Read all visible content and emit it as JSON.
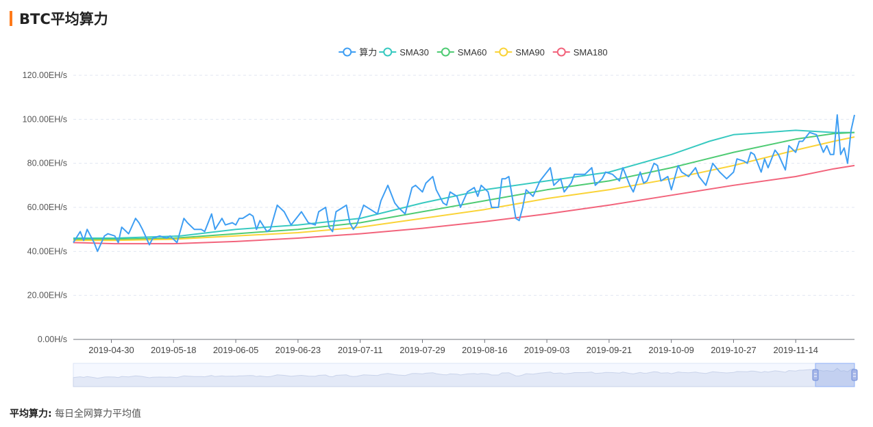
{
  "header": {
    "title": "BTC平均算力",
    "accent_color": "#ff7a1a"
  },
  "footnote": {
    "label": "平均算力:",
    "text": "每日全网算力平均值"
  },
  "chart_data": {
    "type": "line",
    "y_tick_labels": [
      "0.00H/s",
      "20.00EH/s",
      "40.00EH/s",
      "60.00EH/s",
      "80.00EH/s",
      "100.00EH/s",
      "120.00EH/s"
    ],
    "y_ticks": [
      0,
      20,
      40,
      60,
      80,
      100,
      120
    ],
    "ylim": [
      0,
      120
    ],
    "y_unit": "EH/s",
    "x_range": [
      "2019-04-19",
      "2019-12-01"
    ],
    "x_tick_labels": [
      "2019-04-30",
      "2019-05-18",
      "2019-06-05",
      "2019-06-23",
      "2019-07-11",
      "2019-07-29",
      "2019-08-16",
      "2019-09-03",
      "2019-09-21",
      "2019-10-09",
      "2019-10-27",
      "2019-11-14"
    ],
    "grid": "horizontal dashed",
    "legend_position": "top-center",
    "series": [
      {
        "name": "算力",
        "color": "#3e9ef3",
        "width": 2,
        "points": [
          [
            "2019-04-19",
            44
          ],
          [
            "2019-04-21",
            49
          ],
          [
            "2019-04-22",
            45
          ],
          [
            "2019-04-23",
            50
          ],
          [
            "2019-04-25",
            44
          ],
          [
            "2019-04-26",
            40
          ],
          [
            "2019-04-28",
            47
          ],
          [
            "2019-04-29",
            48
          ],
          [
            "2019-05-01",
            47
          ],
          [
            "2019-05-02",
            44
          ],
          [
            "2019-05-03",
            51
          ],
          [
            "2019-05-05",
            48
          ],
          [
            "2019-05-07",
            55
          ],
          [
            "2019-05-08",
            53
          ],
          [
            "2019-05-09",
            50
          ],
          [
            "2019-05-11",
            43
          ],
          [
            "2019-05-12",
            46
          ],
          [
            "2019-05-14",
            47
          ],
          [
            "2019-05-16",
            46
          ],
          [
            "2019-05-17",
            47
          ],
          [
            "2019-05-19",
            44
          ],
          [
            "2019-05-21",
            55
          ],
          [
            "2019-05-22",
            53
          ],
          [
            "2019-05-24",
            50
          ],
          [
            "2019-05-26",
            50
          ],
          [
            "2019-05-27",
            49
          ],
          [
            "2019-05-29",
            57
          ],
          [
            "2019-05-30",
            50
          ],
          [
            "2019-06-01",
            55
          ],
          [
            "2019-06-02",
            52
          ],
          [
            "2019-06-04",
            53
          ],
          [
            "2019-06-05",
            52
          ],
          [
            "2019-06-06",
            55
          ],
          [
            "2019-06-07",
            55
          ],
          [
            "2019-06-09",
            57
          ],
          [
            "2019-06-10",
            56
          ],
          [
            "2019-06-11",
            50
          ],
          [
            "2019-06-12",
            54
          ],
          [
            "2019-06-14",
            49
          ],
          [
            "2019-06-15",
            50
          ],
          [
            "2019-06-17",
            61
          ],
          [
            "2019-06-19",
            58
          ],
          [
            "2019-06-21",
            52
          ],
          [
            "2019-06-23",
            56
          ],
          [
            "2019-06-24",
            58
          ],
          [
            "2019-06-26",
            53
          ],
          [
            "2019-06-28",
            52
          ],
          [
            "2019-06-29",
            58
          ],
          [
            "2019-07-01",
            60
          ],
          [
            "2019-07-02",
            51
          ],
          [
            "2019-07-03",
            49
          ],
          [
            "2019-07-04",
            58
          ],
          [
            "2019-07-06",
            60
          ],
          [
            "2019-07-07",
            61
          ],
          [
            "2019-07-08",
            53
          ],
          [
            "2019-07-09",
            50
          ],
          [
            "2019-07-10",
            52
          ],
          [
            "2019-07-12",
            61
          ],
          [
            "2019-07-14",
            59
          ],
          [
            "2019-07-16",
            57
          ],
          [
            "2019-07-17",
            63
          ],
          [
            "2019-07-19",
            70
          ],
          [
            "2019-07-21",
            62
          ],
          [
            "2019-07-22",
            60
          ],
          [
            "2019-07-24",
            57
          ],
          [
            "2019-07-26",
            69
          ],
          [
            "2019-07-27",
            70
          ],
          [
            "2019-07-29",
            67
          ],
          [
            "2019-07-30",
            71
          ],
          [
            "2019-08-01",
            74
          ],
          [
            "2019-08-02",
            68
          ],
          [
            "2019-08-04",
            62
          ],
          [
            "2019-08-05",
            61
          ],
          [
            "2019-08-06",
            67
          ],
          [
            "2019-08-08",
            65
          ],
          [
            "2019-08-09",
            60
          ],
          [
            "2019-08-11",
            67
          ],
          [
            "2019-08-13",
            69
          ],
          [
            "2019-08-14",
            65
          ],
          [
            "2019-08-15",
            70
          ],
          [
            "2019-08-17",
            67
          ],
          [
            "2019-08-18",
            60
          ],
          [
            "2019-08-19",
            60
          ],
          [
            "2019-08-20",
            60
          ],
          [
            "2019-08-21",
            73
          ],
          [
            "2019-08-22",
            73
          ],
          [
            "2019-08-23",
            74
          ],
          [
            "2019-08-25",
            55
          ],
          [
            "2019-08-26",
            54
          ],
          [
            "2019-08-27",
            60
          ],
          [
            "2019-08-28",
            68
          ],
          [
            "2019-08-30",
            65
          ],
          [
            "2019-09-01",
            72
          ],
          [
            "2019-09-02",
            74
          ],
          [
            "2019-09-04",
            78
          ],
          [
            "2019-09-05",
            70
          ],
          [
            "2019-09-07",
            73
          ],
          [
            "2019-09-08",
            67
          ],
          [
            "2019-09-10",
            71
          ],
          [
            "2019-09-11",
            75
          ],
          [
            "2019-09-13",
            75
          ],
          [
            "2019-09-14",
            75
          ],
          [
            "2019-09-16",
            78
          ],
          [
            "2019-09-17",
            70
          ],
          [
            "2019-09-19",
            73
          ],
          [
            "2019-09-20",
            76
          ],
          [
            "2019-09-22",
            75
          ],
          [
            "2019-09-24",
            72
          ],
          [
            "2019-09-25",
            78
          ],
          [
            "2019-09-27",
            70
          ],
          [
            "2019-09-28",
            67
          ],
          [
            "2019-09-30",
            76
          ],
          [
            "2019-10-01",
            71
          ],
          [
            "2019-10-02",
            72
          ],
          [
            "2019-10-04",
            80
          ],
          [
            "2019-10-05",
            79
          ],
          [
            "2019-10-06",
            72
          ],
          [
            "2019-10-08",
            74
          ],
          [
            "2019-10-09",
            68
          ],
          [
            "2019-10-11",
            79
          ],
          [
            "2019-10-12",
            76
          ],
          [
            "2019-10-14",
            74
          ],
          [
            "2019-10-16",
            78
          ],
          [
            "2019-10-17",
            74
          ],
          [
            "2019-10-19",
            70
          ],
          [
            "2019-10-21",
            80
          ],
          [
            "2019-10-23",
            76
          ],
          [
            "2019-10-25",
            73
          ],
          [
            "2019-10-27",
            76
          ],
          [
            "2019-10-28",
            82
          ],
          [
            "2019-10-30",
            81
          ],
          [
            "2019-10-31",
            80
          ],
          [
            "2019-11-01",
            85
          ],
          [
            "2019-11-02",
            84
          ],
          [
            "2019-11-04",
            76
          ],
          [
            "2019-11-05",
            82
          ],
          [
            "2019-11-06",
            78
          ],
          [
            "2019-11-08",
            86
          ],
          [
            "2019-11-09",
            84
          ],
          [
            "2019-11-11",
            77
          ],
          [
            "2019-11-12",
            88
          ],
          [
            "2019-11-14",
            85
          ],
          [
            "2019-11-15",
            90
          ],
          [
            "2019-11-16",
            90
          ],
          [
            "2019-11-18",
            94
          ],
          [
            "2019-11-20",
            93
          ],
          [
            "2019-11-22",
            85
          ],
          [
            "2019-11-23",
            88
          ],
          [
            "2019-11-24",
            84
          ],
          [
            "2019-11-25",
            84
          ],
          [
            "2019-11-26",
            102
          ],
          [
            "2019-11-27",
            84
          ],
          [
            "2019-11-28",
            87
          ],
          [
            "2019-11-29",
            80
          ],
          [
            "2019-11-30",
            95
          ],
          [
            "2019-12-01",
            102
          ]
        ]
      },
      {
        "name": "SMA30",
        "color": "#37c9c0",
        "width": 2,
        "points": [
          [
            "2019-04-19",
            46
          ],
          [
            "2019-05-01",
            46
          ],
          [
            "2019-05-20",
            47
          ],
          [
            "2019-06-05",
            50
          ],
          [
            "2019-06-23",
            52
          ],
          [
            "2019-07-11",
            55
          ],
          [
            "2019-07-29",
            62
          ],
          [
            "2019-08-16",
            68
          ],
          [
            "2019-09-03",
            72
          ],
          [
            "2019-09-21",
            76
          ],
          [
            "2019-10-09",
            84
          ],
          [
            "2019-10-20",
            90
          ],
          [
            "2019-10-27",
            93
          ],
          [
            "2019-11-05",
            94
          ],
          [
            "2019-11-14",
            95
          ],
          [
            "2019-11-25",
            94
          ],
          [
            "2019-12-01",
            94
          ]
        ]
      },
      {
        "name": "SMA60",
        "color": "#4ecb73",
        "width": 2,
        "points": [
          [
            "2019-04-19",
            45.5
          ],
          [
            "2019-05-01",
            45.5
          ],
          [
            "2019-05-18",
            46
          ],
          [
            "2019-06-05",
            48
          ],
          [
            "2019-06-23",
            50
          ],
          [
            "2019-07-11",
            53
          ],
          [
            "2019-07-29",
            58
          ],
          [
            "2019-08-16",
            63
          ],
          [
            "2019-09-03",
            68
          ],
          [
            "2019-09-21",
            72
          ],
          [
            "2019-10-09",
            78
          ],
          [
            "2019-10-27",
            85
          ],
          [
            "2019-11-14",
            91
          ],
          [
            "2019-11-25",
            93.5
          ],
          [
            "2019-12-01",
            94
          ]
        ]
      },
      {
        "name": "SMA90",
        "color": "#fad337",
        "width": 2,
        "points": [
          [
            "2019-04-19",
            45
          ],
          [
            "2019-05-01",
            45
          ],
          [
            "2019-05-18",
            45.5
          ],
          [
            "2019-06-05",
            47
          ],
          [
            "2019-06-23",
            48.5
          ],
          [
            "2019-07-11",
            51
          ],
          [
            "2019-07-29",
            55
          ],
          [
            "2019-08-16",
            59
          ],
          [
            "2019-09-03",
            64
          ],
          [
            "2019-09-21",
            68
          ],
          [
            "2019-10-09",
            73
          ],
          [
            "2019-10-27",
            79
          ],
          [
            "2019-11-14",
            86
          ],
          [
            "2019-11-25",
            90
          ],
          [
            "2019-12-01",
            92
          ]
        ]
      },
      {
        "name": "SMA180",
        "color": "#f2637b",
        "width": 2,
        "points": [
          [
            "2019-04-19",
            44
          ],
          [
            "2019-05-01",
            43.5
          ],
          [
            "2019-05-18",
            43.5
          ],
          [
            "2019-06-05",
            44.5
          ],
          [
            "2019-06-23",
            46
          ],
          [
            "2019-07-11",
            48
          ],
          [
            "2019-07-29",
            50.5
          ],
          [
            "2019-08-16",
            53.5
          ],
          [
            "2019-09-03",
            57
          ],
          [
            "2019-09-21",
            61
          ],
          [
            "2019-10-09",
            65.5
          ],
          [
            "2019-10-27",
            70
          ],
          [
            "2019-11-14",
            74
          ],
          [
            "2019-11-25",
            77.5
          ],
          [
            "2019-12-01",
            79
          ]
        ]
      }
    ],
    "zoom_slider": {
      "start_fraction": 0.95,
      "end_fraction": 1.0
    }
  }
}
